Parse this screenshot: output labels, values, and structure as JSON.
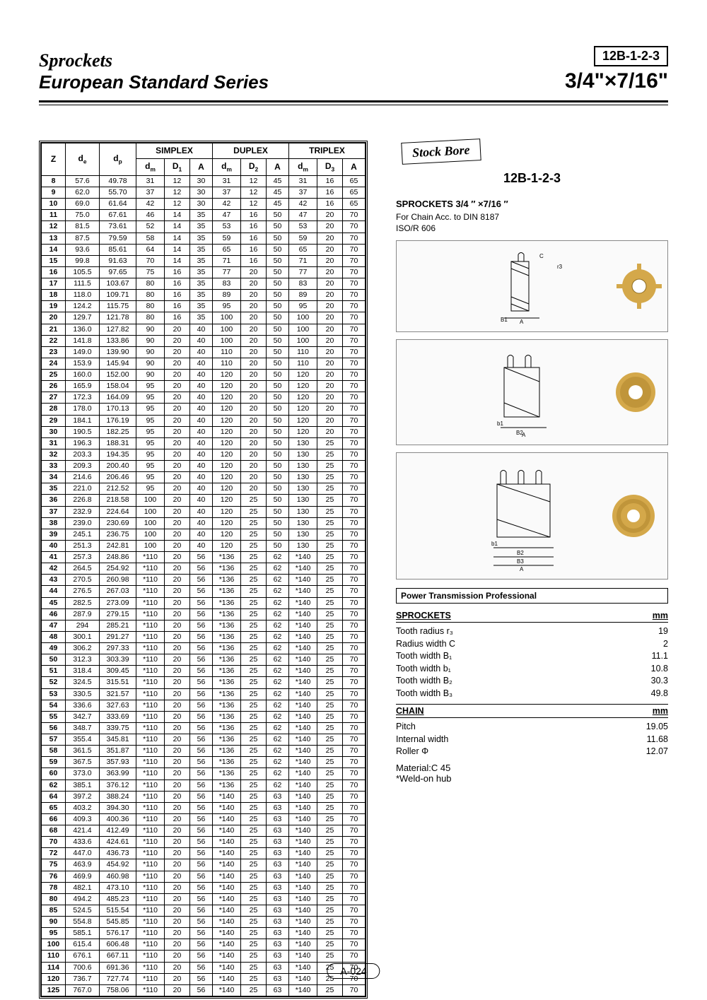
{
  "header": {
    "title1": "Sprockets",
    "title2": "European Standard Series",
    "code": "12B-1-2-3",
    "size": "3/4\"×7/16\""
  },
  "table": {
    "groups": [
      "SIMPLEX",
      "DUPLEX",
      "TRIPLEX"
    ],
    "cols": [
      "Z",
      "d_e",
      "d_p",
      "d_m",
      "D_1",
      "A",
      "d_m",
      "D_2",
      "A",
      "d_m",
      "D_3",
      "A"
    ],
    "sep_after": [
      12,
      17,
      22,
      27,
      32,
      37,
      42,
      47,
      52,
      57,
      64,
      72,
      85,
      114
    ],
    "rows": [
      [
        8,
        "57.6",
        "49.78",
        31,
        12,
        30,
        31,
        12,
        45,
        31,
        16,
        65
      ],
      [
        9,
        "62.0",
        "55.70",
        37,
        12,
        30,
        37,
        12,
        45,
        37,
        16,
        65
      ],
      [
        10,
        "69.0",
        "61.64",
        42,
        12,
        30,
        42,
        12,
        45,
        42,
        16,
        65
      ],
      [
        11,
        "75.0",
        "67.61",
        46,
        14,
        35,
        47,
        16,
        50,
        47,
        20,
        70
      ],
      [
        12,
        "81.5",
        "73.61",
        52,
        14,
        35,
        53,
        16,
        50,
        53,
        20,
        70
      ],
      [
        13,
        "87.5",
        "79.59",
        58,
        14,
        35,
        59,
        16,
        50,
        59,
        20,
        70
      ],
      [
        14,
        "93.6",
        "85.61",
        64,
        14,
        35,
        65,
        16,
        50,
        65,
        20,
        70
      ],
      [
        15,
        "99.8",
        "91.63",
        70,
        14,
        35,
        71,
        16,
        50,
        71,
        20,
        70
      ],
      [
        16,
        "105.5",
        "97.65",
        75,
        16,
        35,
        77,
        20,
        50,
        77,
        20,
        70
      ],
      [
        17,
        "111.5",
        "103.67",
        80,
        16,
        35,
        83,
        20,
        50,
        83,
        20,
        70
      ],
      [
        18,
        "118.0",
        "109.71",
        80,
        16,
        35,
        89,
        20,
        50,
        89,
        20,
        70
      ],
      [
        19,
        "124.2",
        "115.75",
        80,
        16,
        35,
        95,
        20,
        50,
        95,
        20,
        70
      ],
      [
        20,
        "129.7",
        "121.78",
        80,
        16,
        35,
        100,
        20,
        50,
        100,
        20,
        70
      ],
      [
        21,
        "136.0",
        "127.82",
        90,
        20,
        40,
        100,
        20,
        50,
        100,
        20,
        70
      ],
      [
        22,
        "141.8",
        "133.86",
        90,
        20,
        40,
        100,
        20,
        50,
        100,
        20,
        70
      ],
      [
        23,
        "149.0",
        "139.90",
        90,
        20,
        40,
        110,
        20,
        50,
        110,
        20,
        70
      ],
      [
        24,
        "153.9",
        "145.94",
        90,
        20,
        40,
        110,
        20,
        50,
        110,
        20,
        70
      ],
      [
        25,
        "160.0",
        "152.00",
        90,
        20,
        40,
        120,
        20,
        50,
        120,
        20,
        70
      ],
      [
        26,
        "165.9",
        "158.04",
        95,
        20,
        40,
        120,
        20,
        50,
        120,
        20,
        70
      ],
      [
        27,
        "172.3",
        "164.09",
        95,
        20,
        40,
        120,
        20,
        50,
        120,
        20,
        70
      ],
      [
        28,
        "178.0",
        "170.13",
        95,
        20,
        40,
        120,
        20,
        50,
        120,
        20,
        70
      ],
      [
        29,
        "184.1",
        "176.19",
        95,
        20,
        40,
        120,
        20,
        50,
        120,
        20,
        70
      ],
      [
        30,
        "190.5",
        "182.25",
        95,
        20,
        40,
        120,
        20,
        50,
        120,
        20,
        70
      ],
      [
        31,
        "196.3",
        "188.31",
        95,
        20,
        40,
        120,
        20,
        50,
        130,
        25,
        70
      ],
      [
        32,
        "203.3",
        "194.35",
        95,
        20,
        40,
        120,
        20,
        50,
        130,
        25,
        70
      ],
      [
        33,
        "209.3",
        "200.40",
        95,
        20,
        40,
        120,
        20,
        50,
        130,
        25,
        70
      ],
      [
        34,
        "214.6",
        "206.46",
        95,
        20,
        40,
        120,
        20,
        50,
        130,
        25,
        70
      ],
      [
        35,
        "221.0",
        "212.52",
        95,
        20,
        40,
        120,
        20,
        50,
        130,
        25,
        70
      ],
      [
        36,
        "226.8",
        "218.58",
        100,
        20,
        40,
        120,
        25,
        50,
        130,
        25,
        70
      ],
      [
        37,
        "232.9",
        "224.64",
        100,
        20,
        40,
        120,
        25,
        50,
        130,
        25,
        70
      ],
      [
        38,
        "239.0",
        "230.69",
        100,
        20,
        40,
        120,
        25,
        50,
        130,
        25,
        70
      ],
      [
        39,
        "245.1",
        "236.75",
        100,
        20,
        40,
        120,
        25,
        50,
        130,
        25,
        70
      ],
      [
        40,
        "251.3",
        "242.81",
        100,
        20,
        40,
        120,
        25,
        50,
        130,
        25,
        70
      ],
      [
        41,
        "257.3",
        "248.86",
        "*110",
        20,
        56,
        "*136",
        25,
        62,
        "*140",
        25,
        70
      ],
      [
        42,
        "264.5",
        "254.92",
        "*110",
        20,
        56,
        "*136",
        25,
        62,
        "*140",
        25,
        70
      ],
      [
        43,
        "270.5",
        "260.98",
        "*110",
        20,
        56,
        "*136",
        25,
        62,
        "*140",
        25,
        70
      ],
      [
        44,
        "276.5",
        "267.03",
        "*110",
        20,
        56,
        "*136",
        25,
        62,
        "*140",
        25,
        70
      ],
      [
        45,
        "282.5",
        "273.09",
        "*110",
        20,
        56,
        "*136",
        25,
        62,
        "*140",
        25,
        70
      ],
      [
        46,
        "287.9",
        "279.15",
        "*110",
        20,
        56,
        "*136",
        25,
        62,
        "*140",
        25,
        70
      ],
      [
        47,
        "294",
        "285.21",
        "*110",
        20,
        56,
        "*136",
        25,
        62,
        "*140",
        25,
        70
      ],
      [
        48,
        "300.1",
        "291.27",
        "*110",
        20,
        56,
        "*136",
        25,
        62,
        "*140",
        25,
        70
      ],
      [
        49,
        "306.2",
        "297.33",
        "*110",
        20,
        56,
        "*136",
        25,
        62,
        "*140",
        25,
        70
      ],
      [
        50,
        "312.3",
        "303.39",
        "*110",
        20,
        56,
        "*136",
        25,
        62,
        "*140",
        25,
        70
      ],
      [
        51,
        "318.4",
        "309.45",
        "*110",
        20,
        56,
        "*136",
        25,
        62,
        "*140",
        25,
        70
      ],
      [
        52,
        "324.5",
        "315.51",
        "*110",
        20,
        56,
        "*136",
        25,
        62,
        "*140",
        25,
        70
      ],
      [
        53,
        "330.5",
        "321.57",
        "*110",
        20,
        56,
        "*136",
        25,
        62,
        "*140",
        25,
        70
      ],
      [
        54,
        "336.6",
        "327.63",
        "*110",
        20,
        56,
        "*136",
        25,
        62,
        "*140",
        25,
        70
      ],
      [
        55,
        "342.7",
        "333.69",
        "*110",
        20,
        56,
        "*136",
        25,
        62,
        "*140",
        25,
        70
      ],
      [
        56,
        "348.7",
        "339.75",
        "*110",
        20,
        56,
        "*136",
        25,
        62,
        "*140",
        25,
        70
      ],
      [
        57,
        "355.4",
        "345.81",
        "*110",
        20,
        56,
        "*136",
        25,
        62,
        "*140",
        25,
        70
      ],
      [
        58,
        "361.5",
        "351.87",
        "*110",
        20,
        56,
        "*136",
        25,
        62,
        "*140",
        25,
        70
      ],
      [
        59,
        "367.5",
        "357.93",
        "*110",
        20,
        56,
        "*136",
        25,
        62,
        "*140",
        25,
        70
      ],
      [
        60,
        "373.0",
        "363.99",
        "*110",
        20,
        56,
        "*136",
        25,
        62,
        "*140",
        25,
        70
      ],
      [
        62,
        "385.1",
        "376.12",
        "*110",
        20,
        56,
        "*136",
        25,
        62,
        "*140",
        25,
        70
      ],
      [
        64,
        "397.2",
        "388.24",
        "*110",
        20,
        56,
        "*140",
        25,
        63,
        "*140",
        25,
        70
      ],
      [
        65,
        "403.2",
        "394.30",
        "*110",
        20,
        56,
        "*140",
        25,
        63,
        "*140",
        25,
        70
      ],
      [
        66,
        "409.3",
        "400.36",
        "*110",
        20,
        56,
        "*140",
        25,
        63,
        "*140",
        25,
        70
      ],
      [
        68,
        "421.4",
        "412.49",
        "*110",
        20,
        56,
        "*140",
        25,
        63,
        "*140",
        25,
        70
      ],
      [
        70,
        "433.6",
        "424.61",
        "*110",
        20,
        56,
        "*140",
        25,
        63,
        "*140",
        25,
        70
      ],
      [
        72,
        "447.0",
        "436.73",
        "*110",
        20,
        56,
        "*140",
        25,
        63,
        "*140",
        25,
        70
      ],
      [
        75,
        "463.9",
        "454.92",
        "*110",
        20,
        56,
        "*140",
        25,
        63,
        "*140",
        25,
        70
      ],
      [
        76,
        "469.9",
        "460.98",
        "*110",
        20,
        56,
        "*140",
        25,
        63,
        "*140",
        25,
        70
      ],
      [
        78,
        "482.1",
        "473.10",
        "*110",
        20,
        56,
        "*140",
        25,
        63,
        "*140",
        25,
        70
      ],
      [
        80,
        "494.2",
        "485.23",
        "*110",
        20,
        56,
        "*140",
        25,
        63,
        "*140",
        25,
        70
      ],
      [
        85,
        "524.5",
        "515.54",
        "*110",
        20,
        56,
        "*140",
        25,
        63,
        "*140",
        25,
        70
      ],
      [
        90,
        "554.8",
        "545.85",
        "*110",
        20,
        56,
        "*140",
        25,
        63,
        "*140",
        25,
        70
      ],
      [
        95,
        "585.1",
        "576.17",
        "*110",
        20,
        56,
        "*140",
        25,
        63,
        "*140",
        25,
        70
      ],
      [
        100,
        "615.4",
        "606.48",
        "*110",
        20,
        56,
        "*140",
        25,
        63,
        "*140",
        25,
        70
      ],
      [
        110,
        "676.1",
        "667.11",
        "*110",
        20,
        56,
        "*140",
        25,
        63,
        "*140",
        25,
        70
      ],
      [
        114,
        "700.6",
        "691.36",
        "*110",
        20,
        56,
        "*140",
        25,
        63,
        "*140",
        25,
        70
      ],
      [
        120,
        "736.7",
        "727.74",
        "*110",
        20,
        56,
        "*140",
        25,
        63,
        "*140",
        25,
        70
      ],
      [
        125,
        "767.0",
        "758.06",
        "*110",
        20,
        56,
        "*140",
        25,
        63,
        "*140",
        25,
        70
      ]
    ]
  },
  "side": {
    "stock_bore": "Stock Bore",
    "code": "12B-1-2-3",
    "title": "SPROCKETS 3/4 ″ ×7/16 ″",
    "sub1": "For Chain  Acc. to  DIN 8187",
    "sub2": "ISO/R 606",
    "power_box": "Power Transmission Professional",
    "sprockets_head": "SPROCKETS",
    "mm": "mm",
    "sprocket_specs": [
      [
        "Tooth radius r₃",
        "19"
      ],
      [
        "Radius width C",
        "2"
      ],
      [
        "Tooth width B₁",
        "11.1"
      ],
      [
        "Tooth width b₁",
        "10.8"
      ],
      [
        "Tooth width B₂",
        "30.3"
      ],
      [
        "Tooth width B₃",
        "49.8"
      ]
    ],
    "chain_head": "CHAIN",
    "chain_specs": [
      [
        "Pitch",
        "19.05"
      ],
      [
        "Internal width",
        "11.68"
      ],
      [
        "Roller Φ",
        "12.07"
      ]
    ],
    "material": "Material:C 45",
    "footnote": "*Weld-on hub"
  },
  "page": "A-024"
}
